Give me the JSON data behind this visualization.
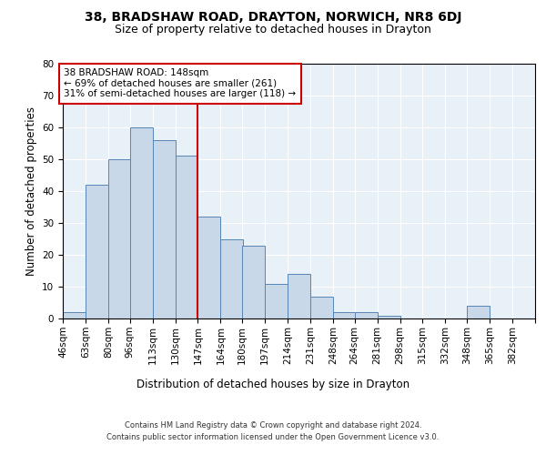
{
  "title1": "38, BRADSHAW ROAD, DRAYTON, NORWICH, NR8 6DJ",
  "title2": "Size of property relative to detached houses in Drayton",
  "xlabel": "Distribution of detached houses by size in Drayton",
  "ylabel": "Number of detached properties",
  "footnote1": "Contains HM Land Registry data © Crown copyright and database right 2024.",
  "footnote2": "Contains public sector information licensed under the Open Government Licence v3.0.",
  "bin_labels": [
    "46sqm",
    "63sqm",
    "80sqm",
    "96sqm",
    "113sqm",
    "130sqm",
    "147sqm",
    "164sqm",
    "180sqm",
    "197sqm",
    "214sqm",
    "231sqm",
    "248sqm",
    "264sqm",
    "281sqm",
    "298sqm",
    "315sqm",
    "332sqm",
    "348sqm",
    "365sqm",
    "382sqm"
  ],
  "bin_edges": [
    46,
    63,
    80,
    96,
    113,
    130,
    147,
    164,
    180,
    197,
    214,
    231,
    248,
    264,
    281,
    298,
    315,
    332,
    348,
    365,
    382
  ],
  "bar_heights": [
    2,
    42,
    50,
    60,
    56,
    51,
    32,
    25,
    23,
    11,
    14,
    7,
    2,
    2,
    1,
    0,
    0,
    0,
    4,
    0
  ],
  "bar_color": "#c8d8e8",
  "bar_edge_color": "#5585b5",
  "vline_x": 147,
  "vline_color": "#cc0000",
  "annotation_line1": "38 BRADSHAW ROAD: 148sqm",
  "annotation_line2": "← 69% of detached houses are smaller (261)",
  "annotation_line3": "31% of semi-detached houses are larger (118) →",
  "annotation_box_color": "white",
  "annotation_box_edge": "#cc0000",
  "ylim": [
    0,
    80
  ],
  "yticks": [
    0,
    10,
    20,
    30,
    40,
    50,
    60,
    70,
    80
  ],
  "bg_color": "#e8f0f8",
  "fig_bg": "#ffffff",
  "grid_color": "#ffffff",
  "title1_fontsize": 10,
  "title2_fontsize": 9,
  "tick_fontsize": 7.5,
  "ylabel_fontsize": 8.5,
  "xlabel_fontsize": 8.5,
  "annot_fontsize": 7.5,
  "footnote_fontsize": 6.0
}
